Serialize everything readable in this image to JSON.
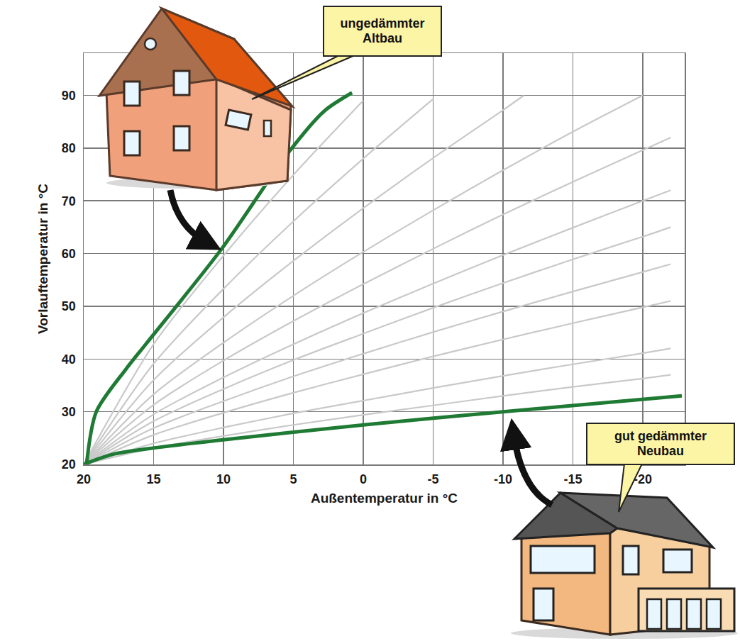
{
  "chart_data": {
    "type": "line",
    "x_title": "Außentemperatur in °C",
    "y_title": "Vorlauftemperatur in °C",
    "xlim": [
      20,
      -23
    ],
    "ylim": [
      20,
      98
    ],
    "xticks": [
      20,
      15,
      10,
      5,
      0,
      -5,
      -10,
      -15,
      -20
    ],
    "yticks": [
      20,
      30,
      40,
      50,
      60,
      70,
      80,
      90
    ],
    "grid": true,
    "series": [
      {
        "color": "#c9c9c9",
        "x": [
          20,
          15,
          10,
          5,
          0,
          -5,
          -10,
          -15,
          -20,
          -22
        ],
        "values": [
          20,
          23.1,
          25.4,
          27.5,
          29.4,
          31.2,
          33.0,
          34.7,
          36.3,
          37
        ]
      },
      {
        "color": "#c9c9c9",
        "x": [
          20,
          15,
          10,
          5,
          0,
          -5,
          -10,
          -15,
          -20,
          -22
        ],
        "values": [
          20,
          24.0,
          27.0,
          29.7,
          32.1,
          34.5,
          36.8,
          39.0,
          41.1,
          42
        ]
      },
      {
        "color": "#c9c9c9",
        "x": [
          20,
          15,
          10,
          5,
          0,
          -5,
          -10,
          -15,
          -20,
          -22
        ],
        "values": [
          20,
          25.6,
          29.8,
          33.6,
          37.1,
          40.5,
          43.7,
          46.8,
          49.8,
          51
        ]
      },
      {
        "color": "#c9c9c9",
        "x": [
          20,
          15,
          10,
          5,
          0,
          -5,
          -10,
          -15,
          -20,
          -22
        ],
        "values": [
          20,
          26.9,
          32.0,
          36.7,
          41.0,
          45.1,
          49.0,
          52.8,
          56.5,
          58
        ]
      },
      {
        "color": "#c9c9c9",
        "x": [
          20,
          15,
          10,
          5,
          0,
          -5,
          -10,
          -15,
          -20,
          -22
        ],
        "values": [
          20,
          28.2,
          34.3,
          39.8,
          44.8,
          49.7,
          54.4,
          58.9,
          63.2,
          65
        ]
      },
      {
        "color": "#c9c9c9",
        "x": [
          20,
          15,
          10,
          5,
          0,
          -5,
          -10,
          -15,
          -20,
          -22
        ],
        "values": [
          20,
          29.5,
          36.5,
          42.8,
          48.7,
          54.3,
          59.7,
          64.9,
          70.0,
          72
        ]
      },
      {
        "color": "#c9c9c9",
        "x": [
          20,
          15,
          10,
          5,
          0,
          -5,
          -10,
          -15,
          -20,
          -22
        ],
        "values": [
          20,
          31.3,
          39.7,
          47.2,
          54.2,
          60.9,
          67.4,
          73.6,
          79.6,
          82
        ]
      },
      {
        "color": "#c9c9c9",
        "x": [
          20,
          15,
          10,
          5,
          0,
          -5,
          -10,
          -15,
          -20
        ],
        "values": [
          20,
          33.3,
          43.1,
          52.0,
          60.3,
          68.2,
          75.8,
          83.1,
          90
        ]
      },
      {
        "color": "#c9c9c9",
        "x": [
          20,
          15,
          10,
          5,
          0,
          -5,
          -10,
          -11.5
        ],
        "values": [
          20,
          36.0,
          47.9,
          58.6,
          68.6,
          78.1,
          87.2,
          90
        ]
      },
      {
        "color": "#c9c9c9",
        "x": [
          20,
          15,
          10,
          5,
          0,
          -5
        ],
        "values": [
          20,
          39.1,
          53.3,
          66.1,
          78.0,
          89.3
        ]
      },
      {
        "color": "#c9c9c9",
        "x": [
          20,
          15,
          10,
          5,
          0
        ],
        "values": [
          20,
          42.8,
          59.6,
          74.9,
          89.0
        ]
      },
      {
        "name": "ungedämmter Altbau",
        "color": "#1f7a34",
        "x": [
          19.8,
          19.1,
          17,
          15.5,
          10.1,
          5.4,
          2.8,
          0.8
        ],
        "values": [
          20,
          30,
          38,
          43,
          61,
          79,
          87,
          90.5
        ]
      },
      {
        "name": "gut gedämmter Neubau",
        "color": "#1f7a34",
        "x": [
          20,
          17.8,
          10.6,
          0,
          -10,
          -22.8
        ],
        "values": [
          20,
          22,
          24.5,
          27.5,
          30,
          33
        ]
      }
    ]
  }
}
